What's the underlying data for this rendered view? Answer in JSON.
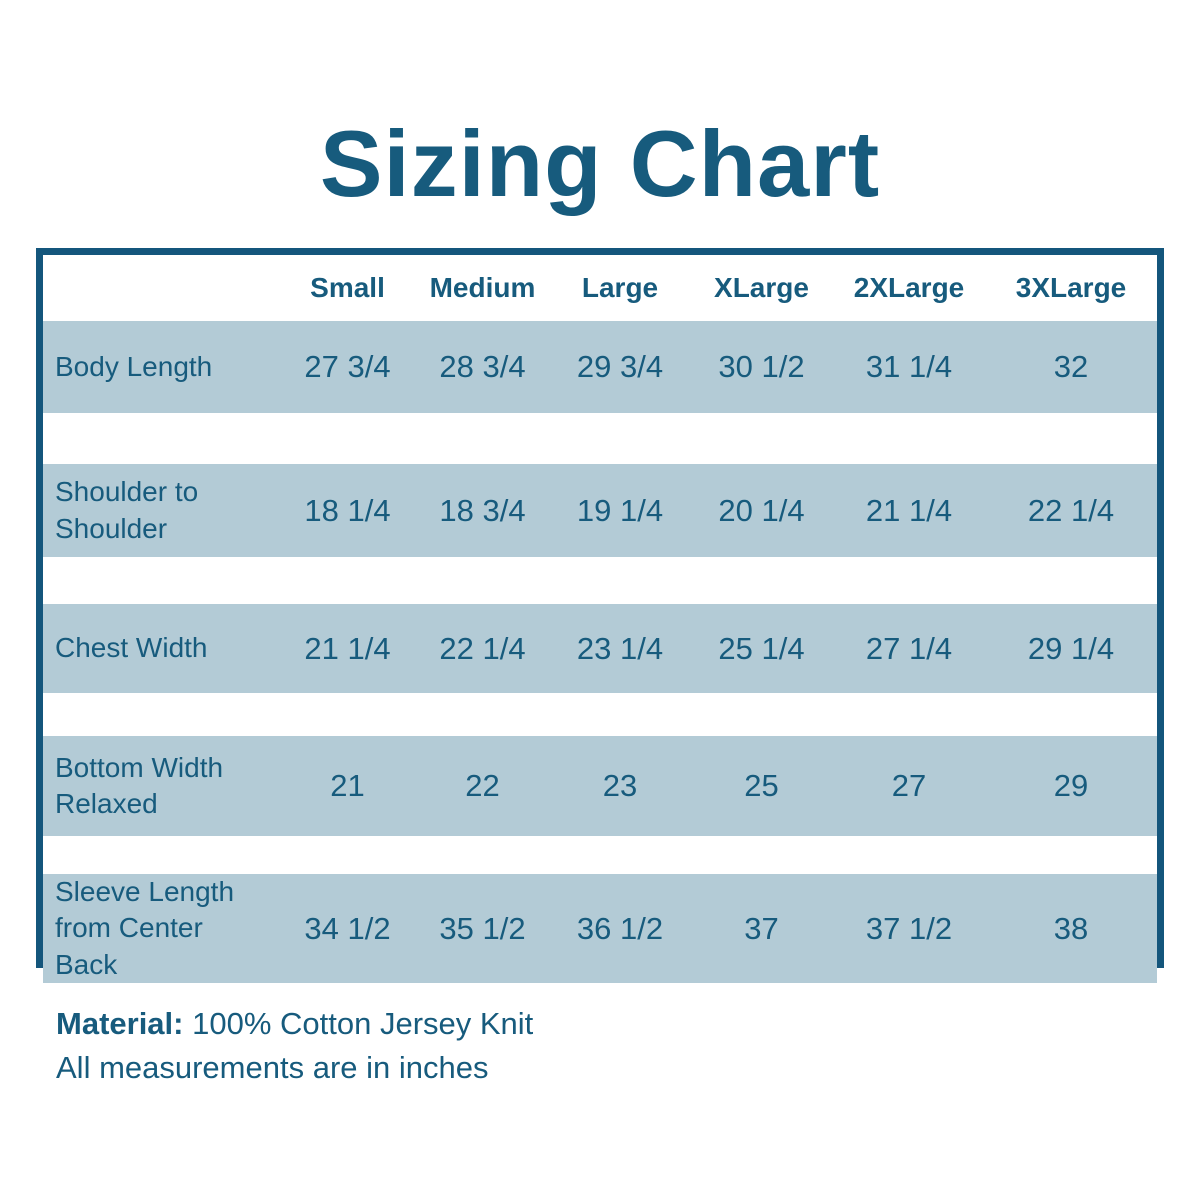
{
  "title": "Sizing Chart",
  "colors": {
    "heading_teal": "#175B7D",
    "table_border": "#14567C",
    "row_stripe": "#B3CBD6",
    "background": "#FFFFFF"
  },
  "chart_data": {
    "type": "table",
    "title": "Sizing Chart",
    "columns": [
      "Small",
      "Medium",
      "Large",
      "XLarge",
      "2XLarge",
      "3XLarge"
    ],
    "rows": [
      {
        "label": "Body Length",
        "values": [
          "27 3/4",
          "28 3/4",
          "29 3/4",
          "30 1/2",
          "31 1/4",
          "32"
        ]
      },
      {
        "label": "Shoulder to Shoulder",
        "values": [
          "18 1/4",
          "18 3/4",
          "19 1/4",
          "20 1/4",
          "21 1/4",
          "22 1/4"
        ]
      },
      {
        "label": "Chest Width",
        "values": [
          "21 1/4",
          "22 1/4",
          "23 1/4",
          "25 1/4",
          "27 1/4",
          "29 1/4"
        ]
      },
      {
        "label": "Bottom Width Relaxed",
        "values": [
          "21",
          "22",
          "23",
          "25",
          "27",
          "29"
        ]
      },
      {
        "label": "Sleeve Length from Center Back",
        "values": [
          "34 1/2",
          "35 1/2",
          "36 1/2",
          "37",
          "37 1/2",
          "38"
        ]
      }
    ],
    "material_label": "Material:",
    "material_value": "100% Cotton Jersey Knit",
    "units_note": "All measurements are in inches"
  }
}
